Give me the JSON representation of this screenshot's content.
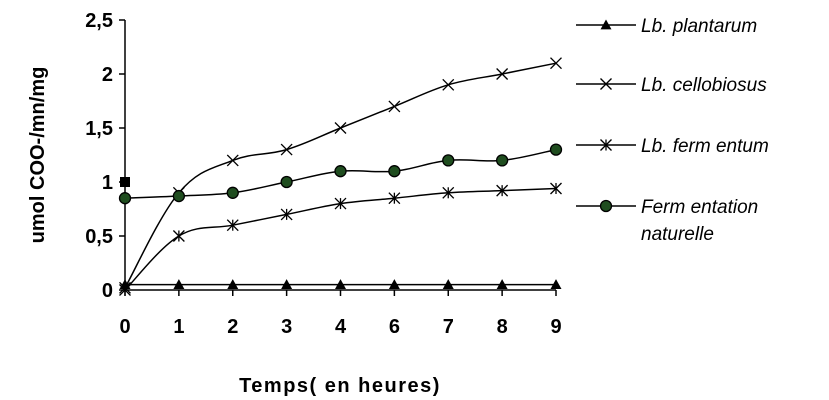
{
  "chart_data": {
    "type": "line",
    "title": "",
    "xlabel": "Temps( en heures)",
    "ylabel": "umol COO-/mn/mg",
    "categories": [
      "0",
      "1",
      "2",
      "3",
      "4",
      "6",
      "7",
      "8",
      "9"
    ],
    "ylim": [
      0,
      2.5
    ],
    "yticks": [
      "0",
      "0,5",
      "1",
      "1,5",
      "2",
      "2,5"
    ],
    "grid": false,
    "legend_position": "right",
    "series": [
      {
        "name": "Lb. plantarum",
        "marker": "triangle",
        "color": "#000000",
        "values": [
          0.05,
          0.05,
          0.05,
          0.05,
          0.05,
          0.05,
          0.05,
          0.05,
          0.05
        ]
      },
      {
        "name": "Lb. cellobiosus",
        "marker": "x",
        "color": "#000000",
        "values": [
          0.02,
          0.9,
          1.2,
          1.3,
          1.5,
          1.7,
          1.9,
          2.0,
          2.1
        ]
      },
      {
        "name": "Lb. fermentum",
        "marker": "asterisk",
        "color": "#000000",
        "values": [
          0.0,
          0.5,
          0.6,
          0.7,
          0.8,
          0.85,
          0.9,
          0.92,
          0.94
        ]
      },
      {
        "name": "Fermentation naturelle",
        "legend_lines": [
          "Ferm entation",
          "naturelle"
        ],
        "marker": "circle",
        "color": "#000000",
        "marker_fill": "#1f4d1f",
        "values": [
          0.85,
          0.87,
          0.9,
          1.0,
          1.1,
          1.1,
          1.2,
          1.2,
          1.3
        ]
      }
    ],
    "annotations": [
      {
        "marker": "square",
        "x": "0",
        "y": 1.0
      }
    ],
    "legend": [
      {
        "label": "Lb. plantarum",
        "marker": "triangle"
      },
      {
        "label": "Lb. cellobiosus",
        "marker": "x"
      },
      {
        "label": "Lb. ferm entum",
        "marker": "asterisk"
      },
      {
        "label": "Ferm entation",
        "label2": "naturelle",
        "marker": "circle"
      }
    ]
  }
}
